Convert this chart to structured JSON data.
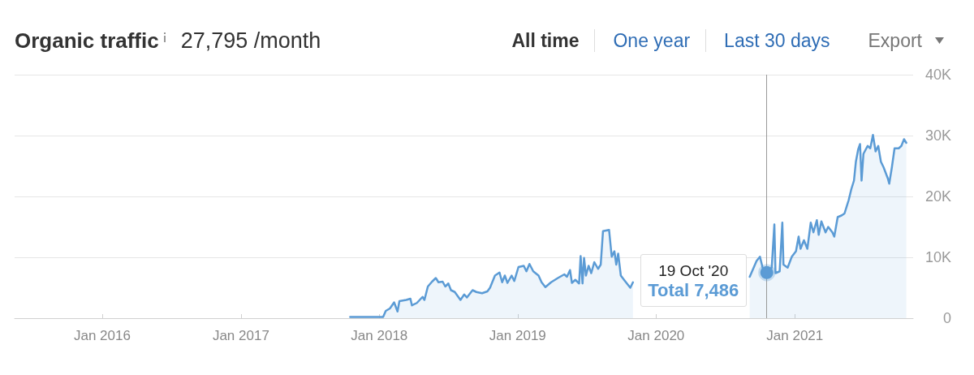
{
  "chart_data": {
    "type": "area",
    "title": "Organic traffic",
    "subtitle": "27,795 /month",
    "color": "#5b9bd5",
    "x": [
      "2017-10-16",
      "2018-01-11",
      "2018-01-18",
      "2018-01-29",
      "2018-02-09",
      "2018-02-18",
      "2018-02-23",
      "2018-03-13",
      "2018-03-24",
      "2018-03-28",
      "2018-04-10",
      "2018-04-25",
      "2018-04-30",
      "2018-05-09",
      "2018-05-20",
      "2018-05-30",
      "2018-06-06",
      "2018-06-17",
      "2018-06-24",
      "2018-07-02",
      "2018-07-09",
      "2018-07-19",
      "2018-08-03",
      "2018-08-13",
      "2018-08-20",
      "2018-09-04",
      "2018-09-14",
      "2018-09-29",
      "2018-10-13",
      "2018-10-20",
      "2018-11-02",
      "2018-11-14",
      "2018-11-21",
      "2018-11-28",
      "2018-12-05",
      "2018-12-16",
      "2018-12-23",
      "2019-01-03",
      "2019-01-17",
      "2019-01-24",
      "2019-02-01",
      "2019-02-11",
      "2019-02-25",
      "2019-03-05",
      "2019-03-15",
      "2019-03-30",
      "2019-04-17",
      "2019-05-04",
      "2019-05-11",
      "2019-05-19",
      "2019-05-24",
      "2019-06-02",
      "2019-06-12",
      "2019-06-16",
      "2019-06-21",
      "2019-06-25",
      "2019-06-30",
      "2019-07-07",
      "2019-07-14",
      "2019-07-22",
      "2019-08-01",
      "2019-08-08",
      "2019-08-14",
      "2019-08-30",
      "2019-09-06",
      "2019-09-13",
      "2019-09-18",
      "2019-09-23",
      "2019-09-30",
      "2019-10-11",
      "2019-10-25",
      "2019-11-01",
      "2020-03-15",
      "2020-09-04",
      "2020-09-22",
      "2020-10-01",
      "2020-10-08",
      "2020-10-19",
      "2020-11-01",
      "2020-11-08",
      "2020-11-11",
      "2020-11-22",
      "2020-11-29",
      "2020-12-02",
      "2020-12-13",
      "2020-12-24",
      "2021-01-04",
      "2021-01-11",
      "2021-01-16",
      "2021-01-25",
      "2021-02-03",
      "2021-02-12",
      "2021-02-19",
      "2021-02-28",
      "2021-03-05",
      "2021-03-12",
      "2021-03-23",
      "2021-03-30",
      "2021-04-10",
      "2021-04-15",
      "2021-04-24",
      "2021-05-05",
      "2021-05-12",
      "2021-05-23",
      "2021-05-30",
      "2021-06-06",
      "2021-06-11",
      "2021-06-17",
      "2021-06-22",
      "2021-06-26",
      "2021-07-01",
      "2021-07-12",
      "2021-07-19",
      "2021-07-26",
      "2021-08-02",
      "2021-08-09",
      "2021-08-16",
      "2021-08-23",
      "2021-09-03",
      "2021-09-07",
      "2021-09-14",
      "2021-09-21",
      "2021-10-02",
      "2021-10-09",
      "2021-10-16",
      "2021-10-22"
    ],
    "values": [
      200,
      200,
      1200,
      1600,
      2600,
      1100,
      2800,
      3000,
      3200,
      2100,
      2500,
      3500,
      3000,
      5200,
      6000,
      6600,
      5900,
      6000,
      5200,
      5700,
      4600,
      4300,
      3000,
      3900,
      3400,
      4600,
      4300,
      4100,
      4400,
      5000,
      7000,
      7500,
      5900,
      7000,
      5800,
      7000,
      6100,
      8400,
      8600,
      7700,
      8900,
      7700,
      7000,
      5900,
      5100,
      5900,
      6600,
      7200,
      6800,
      7900,
      5800,
      6300,
      5700,
      10200,
      5700,
      9900,
      7000,
      8600,
      7400,
      9200,
      8100,
      8800,
      14300,
      14500,
      10100,
      11000,
      8800,
      10600,
      7000,
      6100,
      5000,
      5900,
      null,
      6800,
      9400,
      10100,
      8300,
      7486,
      8300,
      15400,
      7400,
      7700,
      15700,
      8800,
      8300,
      10100,
      11000,
      13400,
      11400,
      12800,
      11400,
      15700,
      14100,
      16100,
      13700,
      15900,
      14100,
      15000,
      14100,
      13400,
      16600,
      16900,
      17200,
      19400,
      21200,
      22600,
      25700,
      27700,
      28600,
      22600,
      27000,
      28300,
      27900,
      30100,
      27400,
      28300,
      25700,
      24800,
      23000,
      22100,
      24800,
      27900,
      27900,
      28300,
      29400,
      28800
    ],
    "xlim": [
      "2015-05-15",
      "2021-11-09"
    ],
    "xticks": [
      {
        "value": "2016-01-01",
        "label": "Jan 2016"
      },
      {
        "value": "2017-01-01",
        "label": "Jan 2017"
      },
      {
        "value": "2018-01-01",
        "label": "Jan 2018"
      },
      {
        "value": "2019-01-01",
        "label": "Jan 2019"
      },
      {
        "value": "2020-01-01",
        "label": "Jan 2020"
      },
      {
        "value": "2021-01-01",
        "label": "Jan 2021"
      }
    ],
    "ylim": [
      0,
      40000
    ],
    "yticks": [
      0,
      {
        "value": 10000,
        "label": "10K"
      },
      {
        "value": 20000,
        "label": "20K"
      },
      {
        "value": 30000,
        "label": "30K"
      },
      {
        "value": 40000,
        "label": "40K"
      }
    ],
    "grid": "y",
    "ref_lines": [
      {
        "axis": "x",
        "value": "2020-10-19",
        "color": "#999999"
      }
    ],
    "annotations": [
      "All time",
      "One year",
      "Last 30 days",
      "Export",
      {
        "text": "19 Oct '20\nTotal 7,486",
        "x": "2020-10-19",
        "y": 7486
      }
    ]
  }
}
